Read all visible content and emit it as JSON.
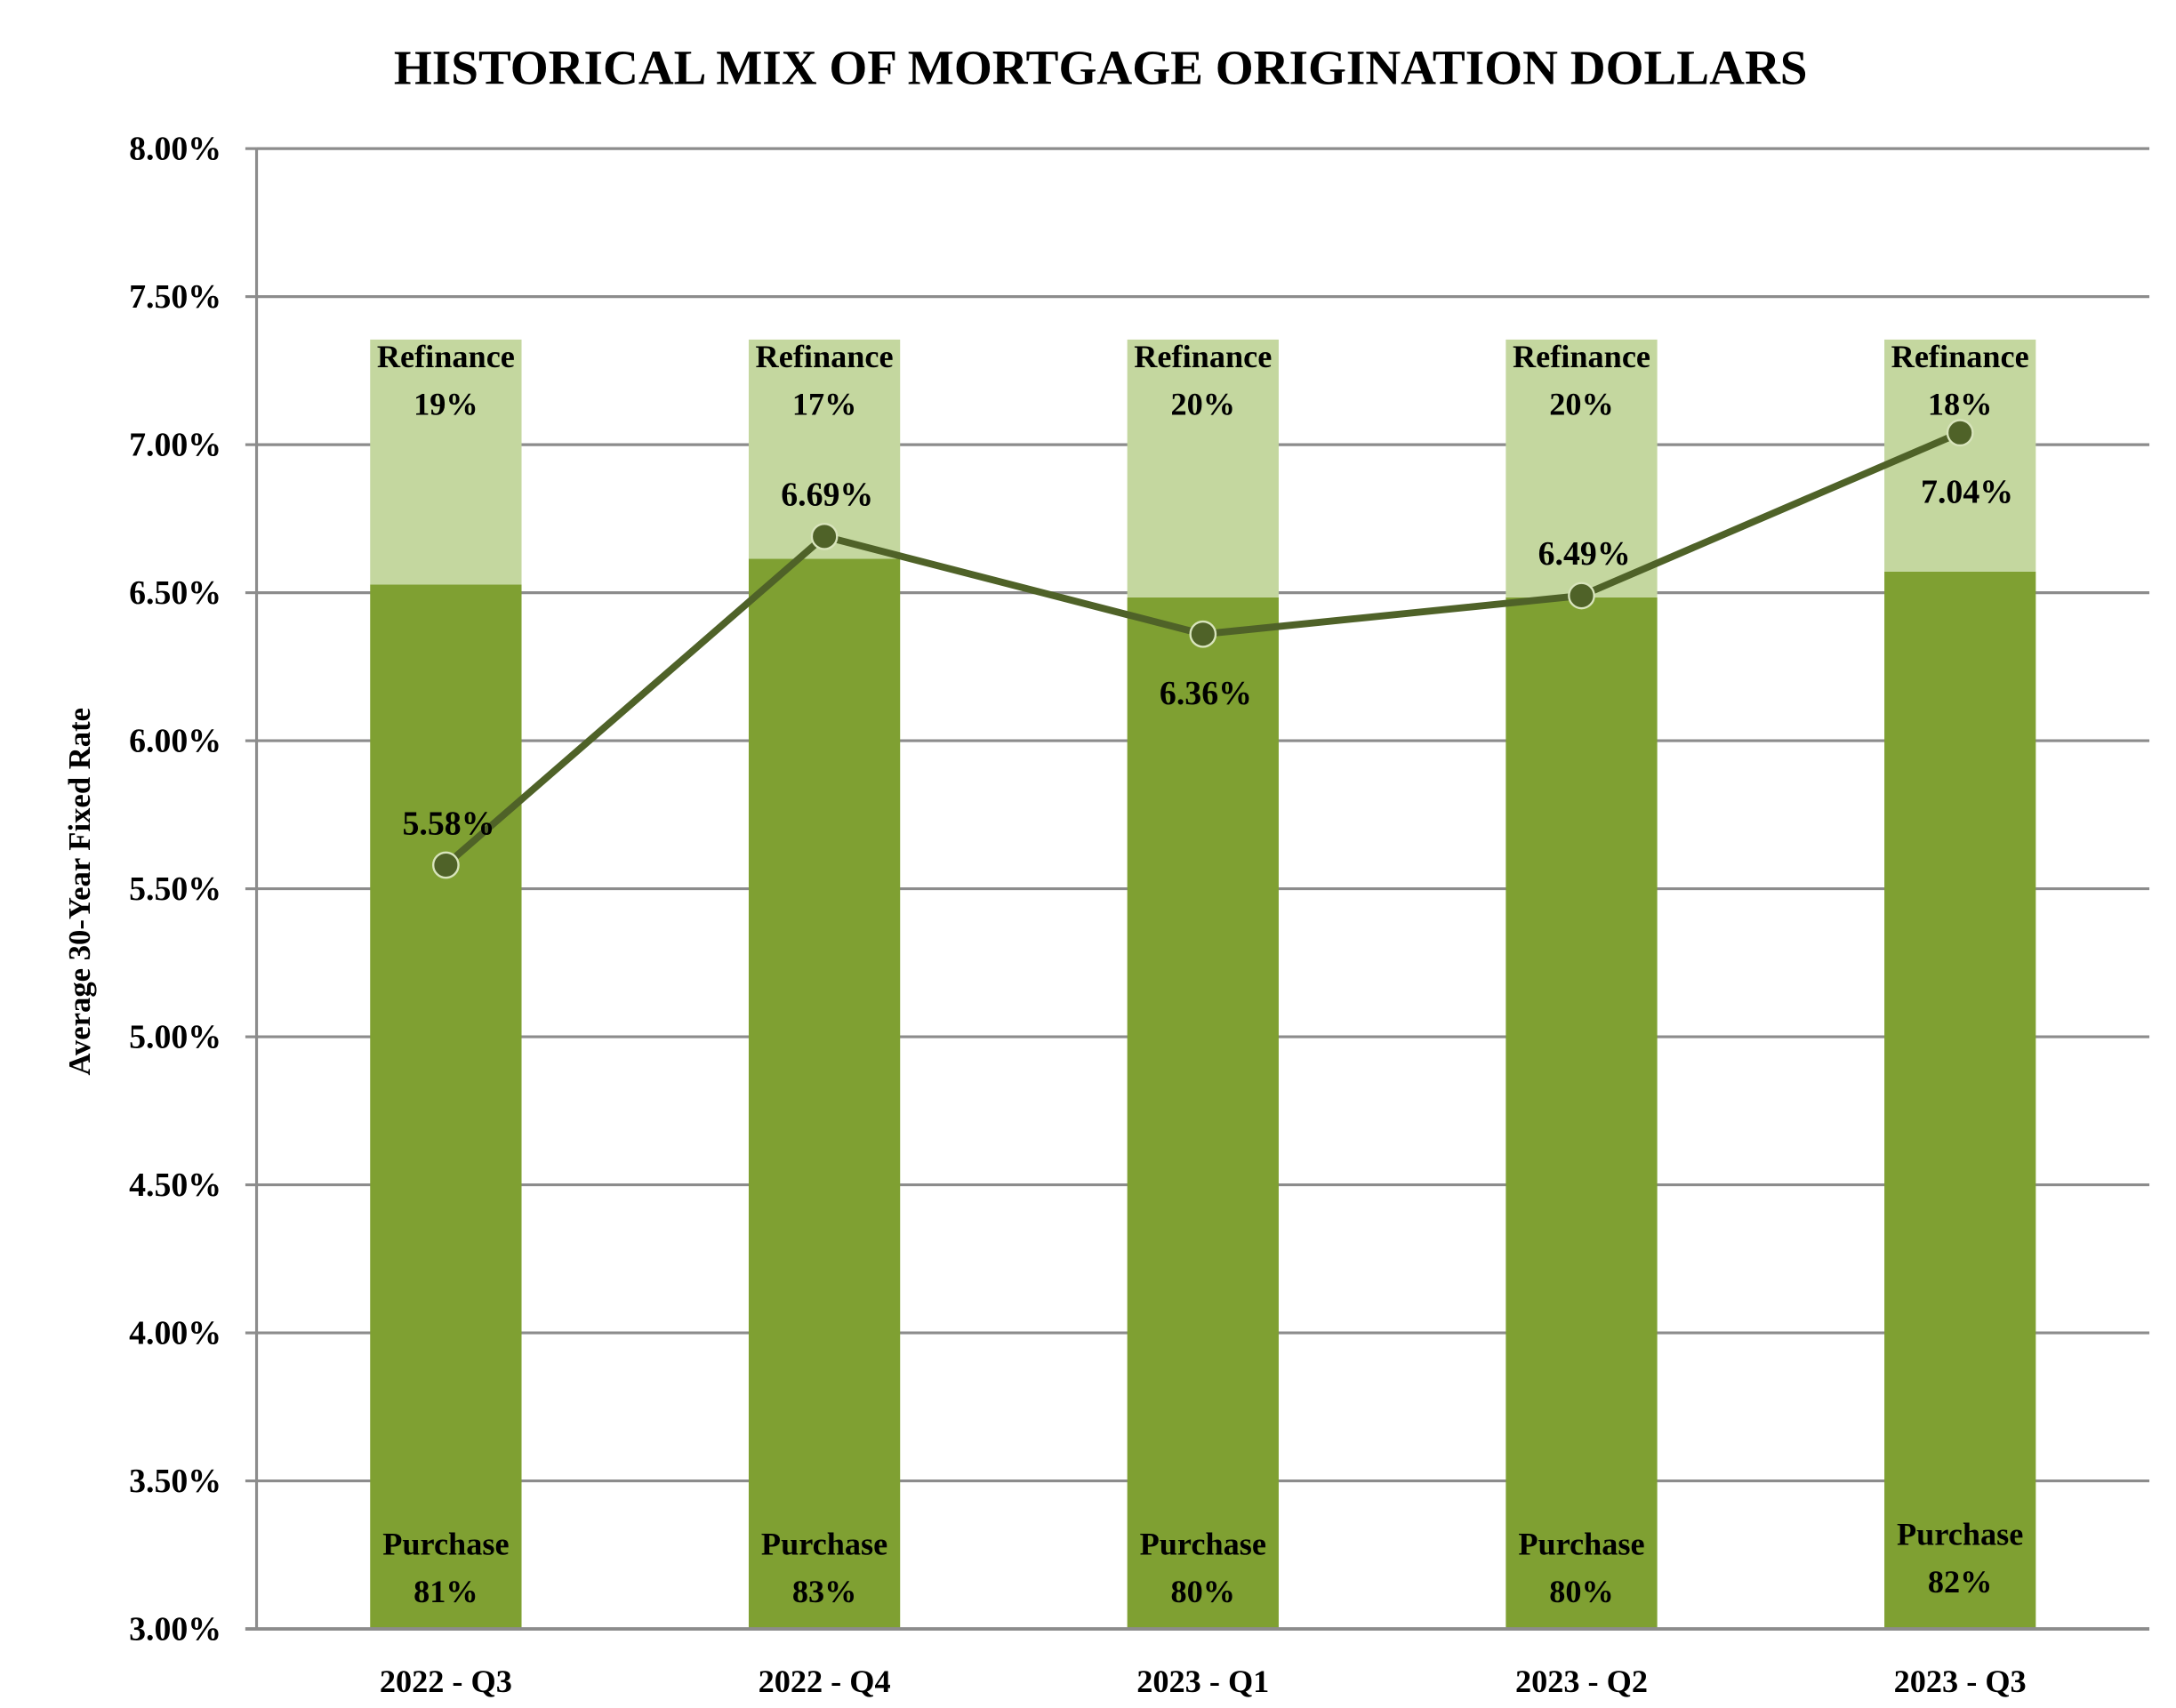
{
  "chart_data": {
    "type": "bar+line",
    "title": "HISTORICAL MIX OF MORTGAGE ORIGINATION DOLLARS",
    "xlabel": "",
    "ylabel": "Average 30-Year Fixed Rate",
    "ylim": [
      3.0,
      8.0
    ],
    "yticks": [
      "3.00%",
      "3.50%",
      "4.00%",
      "4.50%",
      "5.00%",
      "5.50%",
      "6.00%",
      "6.50%",
      "7.00%",
      "7.50%",
      "8.00%"
    ],
    "grid": true,
    "categories": [
      "2022 - Q3",
      "2022 - Q4",
      "2023 - Q1",
      "2023 - Q2",
      "2023 - Q3"
    ],
    "stacked_series": [
      {
        "name": "Purchase",
        "values": [
          81,
          83,
          80,
          80,
          82
        ],
        "labels": [
          "81%",
          "83%",
          "80%",
          "80%",
          "82%"
        ],
        "color": "#7FA032"
      },
      {
        "name": "Refinance",
        "values": [
          19,
          17,
          20,
          20,
          18
        ],
        "labels": [
          "19%",
          "17%",
          "20%",
          "20%",
          "18%"
        ],
        "color": "#C4D79F"
      }
    ],
    "line_series": {
      "values": [
        5.58,
        6.69,
        6.36,
        6.49,
        7.04
      ],
      "labels": [
        "5.58%",
        "6.69%",
        "6.36%",
        "6.49%",
        "7.04%"
      ],
      "color": "#4F6228"
    }
  }
}
